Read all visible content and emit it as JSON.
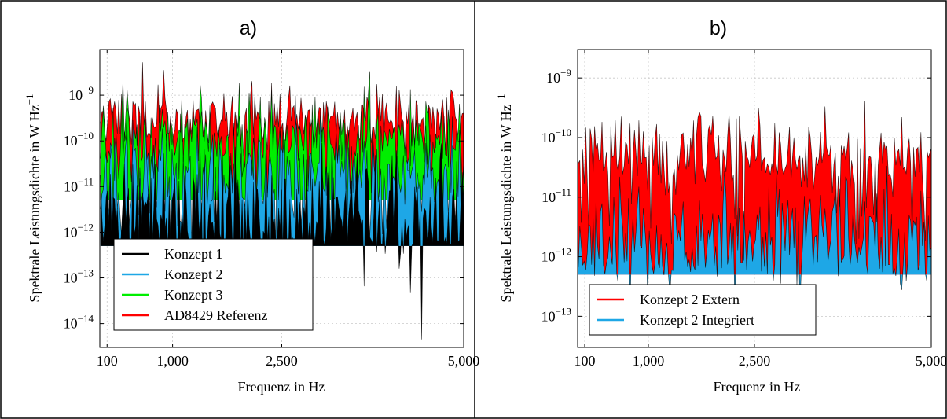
{
  "chart_data": [
    {
      "type": "area",
      "panel_label": "a)",
      "xlabel": "Frequenz in Hz",
      "ylabel": "Spektrale Leistungsdichte in W Hz",
      "ylabel_exponent": "−1",
      "x_scale": "linear",
      "y_scale": "log",
      "xlim": [
        0,
        5000
      ],
      "ylim": [
        3e-15,
        1e-08
      ],
      "x_ticks": [
        100,
        1000,
        2500,
        5000
      ],
      "x_tick_labels": [
        "100",
        "1,000",
        "2,500",
        "5,000"
      ],
      "y_ticks": [
        1e-14,
        1e-13,
        1e-12,
        1e-11,
        1e-10,
        1e-09
      ],
      "y_tick_labels": [
        {
          "base": "10",
          "exp": "−14"
        },
        {
          "base": "10",
          "exp": "−13"
        },
        {
          "base": "10",
          "exp": "−12"
        },
        {
          "base": "10",
          "exp": "−11"
        },
        {
          "base": "10",
          "exp": "−10"
        },
        {
          "base": "10",
          "exp": "−9"
        }
      ],
      "grid": true,
      "legend_position": "bottom-left",
      "series": [
        {
          "name": "AD8429 Referenz",
          "color": "#ff0000",
          "noise_floor": 5e-12,
          "typical_level": 3e-10,
          "spread_decades": 0.35,
          "seed": 11
        },
        {
          "name": "Konzept 3",
          "color": "#00ee00",
          "noise_floor": 5e-12,
          "typical_level": 1.3e-10,
          "spread_decades": 0.45,
          "seed": 23
        },
        {
          "name": "Konzept 2",
          "color": "#1ea7e6",
          "noise_floor": 5e-13,
          "typical_level": 1.5e-11,
          "spread_decades": 0.6,
          "seed": 37
        },
        {
          "name": "Konzept 1",
          "color": "#000000",
          "noise_floor": 5e-13,
          "typical_level": 2e-12,
          "spread_decades": 0.7,
          "seed": 51
        }
      ],
      "legend_order": [
        "Konzept 1",
        "Konzept 2",
        "Konzept 3",
        "AD8429 Referenz"
      ],
      "x_data_range": [
        10,
        5000
      ],
      "points": 260
    },
    {
      "type": "area",
      "panel_label": "b)",
      "xlabel": "Frequenz in Hz",
      "ylabel": "Spektrale Leistungsdichte in W Hz",
      "ylabel_exponent": "−1",
      "x_scale": "linear",
      "y_scale": "log",
      "xlim": [
        0,
        5000
      ],
      "ylim": [
        3e-14,
        3e-09
      ],
      "x_ticks": [
        100,
        1000,
        2500,
        5000
      ],
      "x_tick_labels": [
        "100",
        "1,000",
        "2,500",
        "5,000"
      ],
      "y_ticks": [
        1e-13,
        1e-12,
        1e-11,
        1e-10,
        1e-09
      ],
      "y_tick_labels": [
        {
          "base": "10",
          "exp": "−13"
        },
        {
          "base": "10",
          "exp": "−12"
        },
        {
          "base": "10",
          "exp": "−11"
        },
        {
          "base": "10",
          "exp": "−10"
        },
        {
          "base": "10",
          "exp": "−9"
        }
      ],
      "grid": true,
      "legend_position": "bottom-left",
      "series": [
        {
          "name": "Konzept 2 Extern",
          "color": "#ff0000",
          "noise_floor": 5e-13,
          "typical_level": 5e-11,
          "spread_decades": 0.4,
          "seed": 71
        },
        {
          "name": "Konzept 2 Integriert",
          "color": "#1ea7e6",
          "noise_floor": 5e-13,
          "typical_level": 2e-12,
          "spread_decades": 0.5,
          "seed": 89
        }
      ],
      "legend_order": [
        "Konzept 2 Extern",
        "Konzept 2 Integriert"
      ],
      "x_data_range": [
        10,
        5000
      ],
      "points": 240
    }
  ]
}
